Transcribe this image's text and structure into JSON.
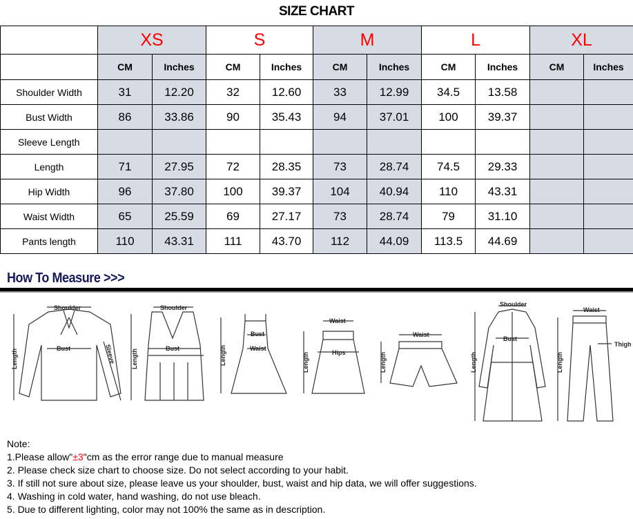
{
  "title": "SIZE CHART",
  "sizes": [
    "XS",
    "S",
    "M",
    "L",
    "XL"
  ],
  "units": {
    "cm": "CM",
    "inches": "Inches"
  },
  "rows": [
    {
      "label": "Shoulder Width",
      "values": [
        "31",
        "12.20",
        "32",
        "12.60",
        "33",
        "12.99",
        "34.5",
        "13.58",
        "",
        ""
      ]
    },
    {
      "label": "Bust Width",
      "values": [
        "86",
        "33.86",
        "90",
        "35.43",
        "94",
        "37.01",
        "100",
        "39.37",
        "",
        ""
      ]
    },
    {
      "label": "Sleeve Length",
      "values": [
        "",
        "",
        "",
        "",
        "",
        "",
        "",
        "",
        "",
        ""
      ]
    },
    {
      "label": "Length",
      "values": [
        "71",
        "27.95",
        "72",
        "28.35",
        "73",
        "28.74",
        "74.5",
        "29.33",
        "",
        ""
      ]
    },
    {
      "label": "Hip Width",
      "values": [
        "96",
        "37.80",
        "100",
        "39.37",
        "104",
        "40.94",
        "110",
        "43.31",
        "",
        ""
      ]
    },
    {
      "label": "Waist Width",
      "values": [
        "65",
        "25.59",
        "69",
        "27.17",
        "73",
        "28.74",
        "79",
        "31.10",
        "",
        ""
      ]
    },
    {
      "label": "Pants length",
      "values": [
        "110",
        "43.31",
        "111",
        "43.70",
        "112",
        "44.09",
        "113.5",
        "44.69",
        "",
        ""
      ]
    }
  ],
  "how_to_measure": "How To Measure >>>",
  "diagram_labels": {
    "shoulder": "Shoulder",
    "bust": "Bust",
    "sleeve": "Sleeve",
    "length": "Length",
    "waist": "Waist",
    "hips": "Hips",
    "thigh": "Thigh"
  },
  "notes": {
    "heading": "Note:",
    "n1_pre": "1.Please allow\"",
    "n1_red": "±3",
    "n1_post": "\"cm as the error range due to manual measure",
    "n2": "2. Please check size chart to choose size. Do not select according to your habit.",
    "n3": "3. If still not sure about size, please leave us your shoulder, bust, waist and hip data, we will offer suggestions.",
    "n4": "4. Washing in cold water, hand washing, do not use bleach.",
    "n5": "5. Due to different lighting, color may not 100% the same as in description."
  },
  "colors": {
    "size_label": "#ff0000",
    "shaded_column": "#d6dce4",
    "heading_navy": "#141a5a"
  }
}
